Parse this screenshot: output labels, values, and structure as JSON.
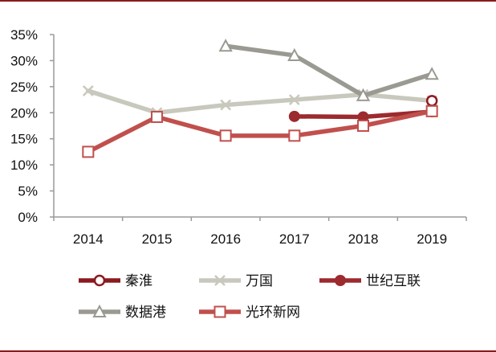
{
  "chart_data": {
    "type": "line",
    "x": [
      "2014",
      "2015",
      "2016",
      "2017",
      "2018",
      "2019"
    ],
    "ylim": [
      0,
      35
    ],
    "yticks": [
      "0%",
      "5%",
      "10%",
      "15%",
      "20%",
      "25%",
      "30%",
      "35%"
    ],
    "grid": false,
    "legend_position": "bottom",
    "series": [
      {
        "name": "秦淮",
        "values": [
          null,
          null,
          null,
          null,
          null,
          22.3
        ],
        "color": "#8b1a1f",
        "marker": "open-circle"
      },
      {
        "name": "万国",
        "values": [
          24.2,
          20.0,
          21.5,
          22.5,
          23.5,
          22.3
        ],
        "color": "#c9c8bd",
        "marker": "x"
      },
      {
        "name": "世纪互联",
        "values": [
          null,
          null,
          null,
          19.3,
          19.2,
          20.2
        ],
        "color": "#9c2a2e",
        "marker": "filled-circle"
      },
      {
        "name": "数据港",
        "values": [
          null,
          null,
          32.8,
          31.0,
          23.3,
          27.4
        ],
        "color": "#9a9a92",
        "marker": "open-triangle"
      },
      {
        "name": "光环新网",
        "values": [
          12.5,
          19.2,
          15.6,
          15.6,
          17.5,
          20.3
        ],
        "color": "#c0504d",
        "marker": "open-square"
      }
    ]
  }
}
